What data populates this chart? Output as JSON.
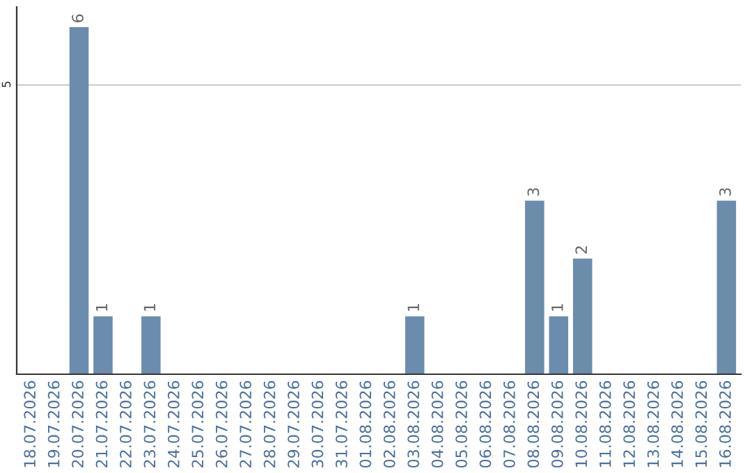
{
  "chart_data": {
    "type": "bar",
    "categories": [
      "18.07.2026",
      "19.07.2026",
      "20.07.2026",
      "21.07.2026",
      "22.07.2026",
      "23.07.2026",
      "24.07.2026",
      "25.07.2026",
      "26.07.2026",
      "27.07.2026",
      "28.07.2026",
      "29.07.2026",
      "30.07.2026",
      "31.07.2026",
      "01.08.2026",
      "02.08.2026",
      "03.08.2026",
      "04.08.2026",
      "05.08.2026",
      "06.08.2026",
      "07.08.2026",
      "08.08.2026",
      "09.08.2026",
      "10.08.2026",
      "11.08.2026",
      "12.08.2026",
      "13.08.2026",
      "14.08.2026",
      "15.08.2026",
      "16.08.2026"
    ],
    "values": [
      0,
      0,
      6,
      1,
      0,
      1,
      0,
      0,
      0,
      0,
      0,
      0,
      0,
      0,
      0,
      0,
      1,
      0,
      0,
      0,
      0,
      3,
      1,
      2,
      0,
      0,
      0,
      0,
      0,
      3
    ],
    "value_labels": [
      null,
      null,
      "6",
      "1",
      null,
      "1",
      null,
      null,
      null,
      null,
      null,
      null,
      null,
      null,
      null,
      null,
      "1",
      null,
      null,
      null,
      null,
      "3",
      "1",
      "2",
      null,
      null,
      null,
      null,
      null,
      "3"
    ],
    "color": "#6b8cac",
    "ylim": [
      0,
      6.35
    ],
    "yticks": [
      5
    ],
    "grid": "y",
    "legend": false
  }
}
